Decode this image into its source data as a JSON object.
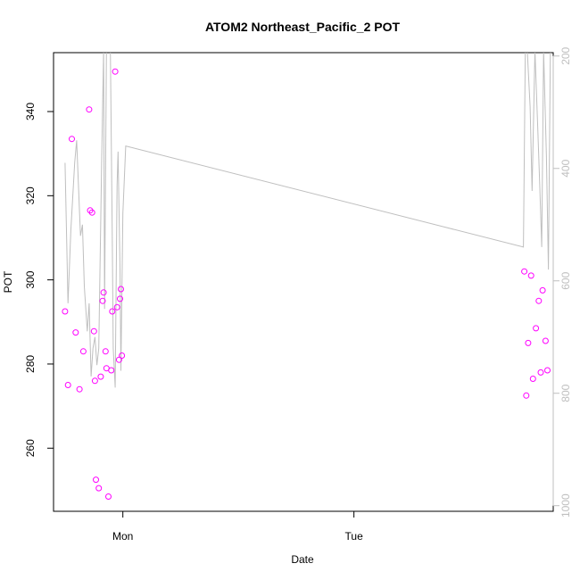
{
  "chart_data": {
    "type": "scatter",
    "title": "ATOM2 Northeast_Pacific_2 POT",
    "xlabel": "Date",
    "ylabel": "POT",
    "x_ticks": [
      "Mon",
      "Tue"
    ],
    "y_ticks": [
      260,
      280,
      300,
      320,
      340
    ],
    "y2_ticks": [
      200,
      400,
      600,
      800,
      1000
    ],
    "x_range_hours": [
      -7.2,
      44.7
    ],
    "ylim": [
      245,
      354
    ],
    "y2lim": [
      1010,
      194
    ],
    "grid": false,
    "legend": "none",
    "colors": {
      "points": "#ff00ff",
      "line": "#bfbfbf",
      "right_axis": "#bfbfbf"
    },
    "series": [
      {
        "marker": "circle",
        "x_hours_from_mon": [
          -6.0,
          -5.7,
          -5.3,
          -4.9,
          -4.5,
          -4.1,
          -3.5,
          -3.2,
          -3.4,
          -3.0,
          -2.9,
          -2.8,
          -2.5,
          -2.3,
          -2.1,
          -2.0,
          -1.8,
          -1.7,
          -1.5,
          -1.2,
          -1.1,
          -0.8,
          -0.6,
          -0.4,
          -0.3,
          -0.2,
          -0.1,
          41.7,
          41.9,
          42.1,
          42.4,
          42.6,
          42.9,
          43.2,
          43.4,
          43.6,
          43.9,
          44.1
        ],
        "y": [
          292.5,
          275,
          333.5,
          287.5,
          274,
          283,
          340.5,
          316,
          316.5,
          287.8,
          276,
          252.5,
          250.5,
          277,
          295,
          297,
          283,
          279,
          248.5,
          278.5,
          292.5,
          349.5,
          293.5,
          281,
          295.5,
          297.8,
          282,
          302,
          272.5,
          285,
          301,
          276.5,
          288.5,
          295,
          278,
          297.5,
          285.5,
          278.5
        ]
      },
      {
        "name": "",
        "axis": "right",
        "type": "line",
        "x_hours_from_mon": [
          -6.0,
          -5.7,
          -5.4,
          -5.0,
          -4.8,
          -4.4,
          -4.2,
          -4.0,
          -3.7,
          -3.5,
          -3.3,
          -3.1,
          -2.9,
          -2.7,
          -2.5,
          -2.2,
          -2.0,
          -1.9,
          -1.7,
          -1.5,
          -1.3,
          -1.1,
          -1.0,
          -0.8,
          -0.6,
          -0.5,
          -0.3,
          -0.2,
          0.0,
          0.3,
          41.6,
          41.8,
          42.0,
          42.3,
          42.5,
          42.8,
          43.1,
          43.3,
          43.5,
          43.7,
          44.0,
          44.2,
          44.4
        ],
        "y": [
          390,
          640,
          510,
          390,
          350,
          520,
          500,
          610,
          690,
          640,
          770,
          720,
          700,
          750,
          720,
          390,
          190,
          650,
          190,
          190,
          190,
          520,
          720,
          790,
          430,
          370,
          580,
          760,
          480,
          360,
          540,
          190,
          190,
          290,
          440,
          190,
          330,
          430,
          540,
          190,
          380,
          580,
          190
        ]
      }
    ]
  }
}
